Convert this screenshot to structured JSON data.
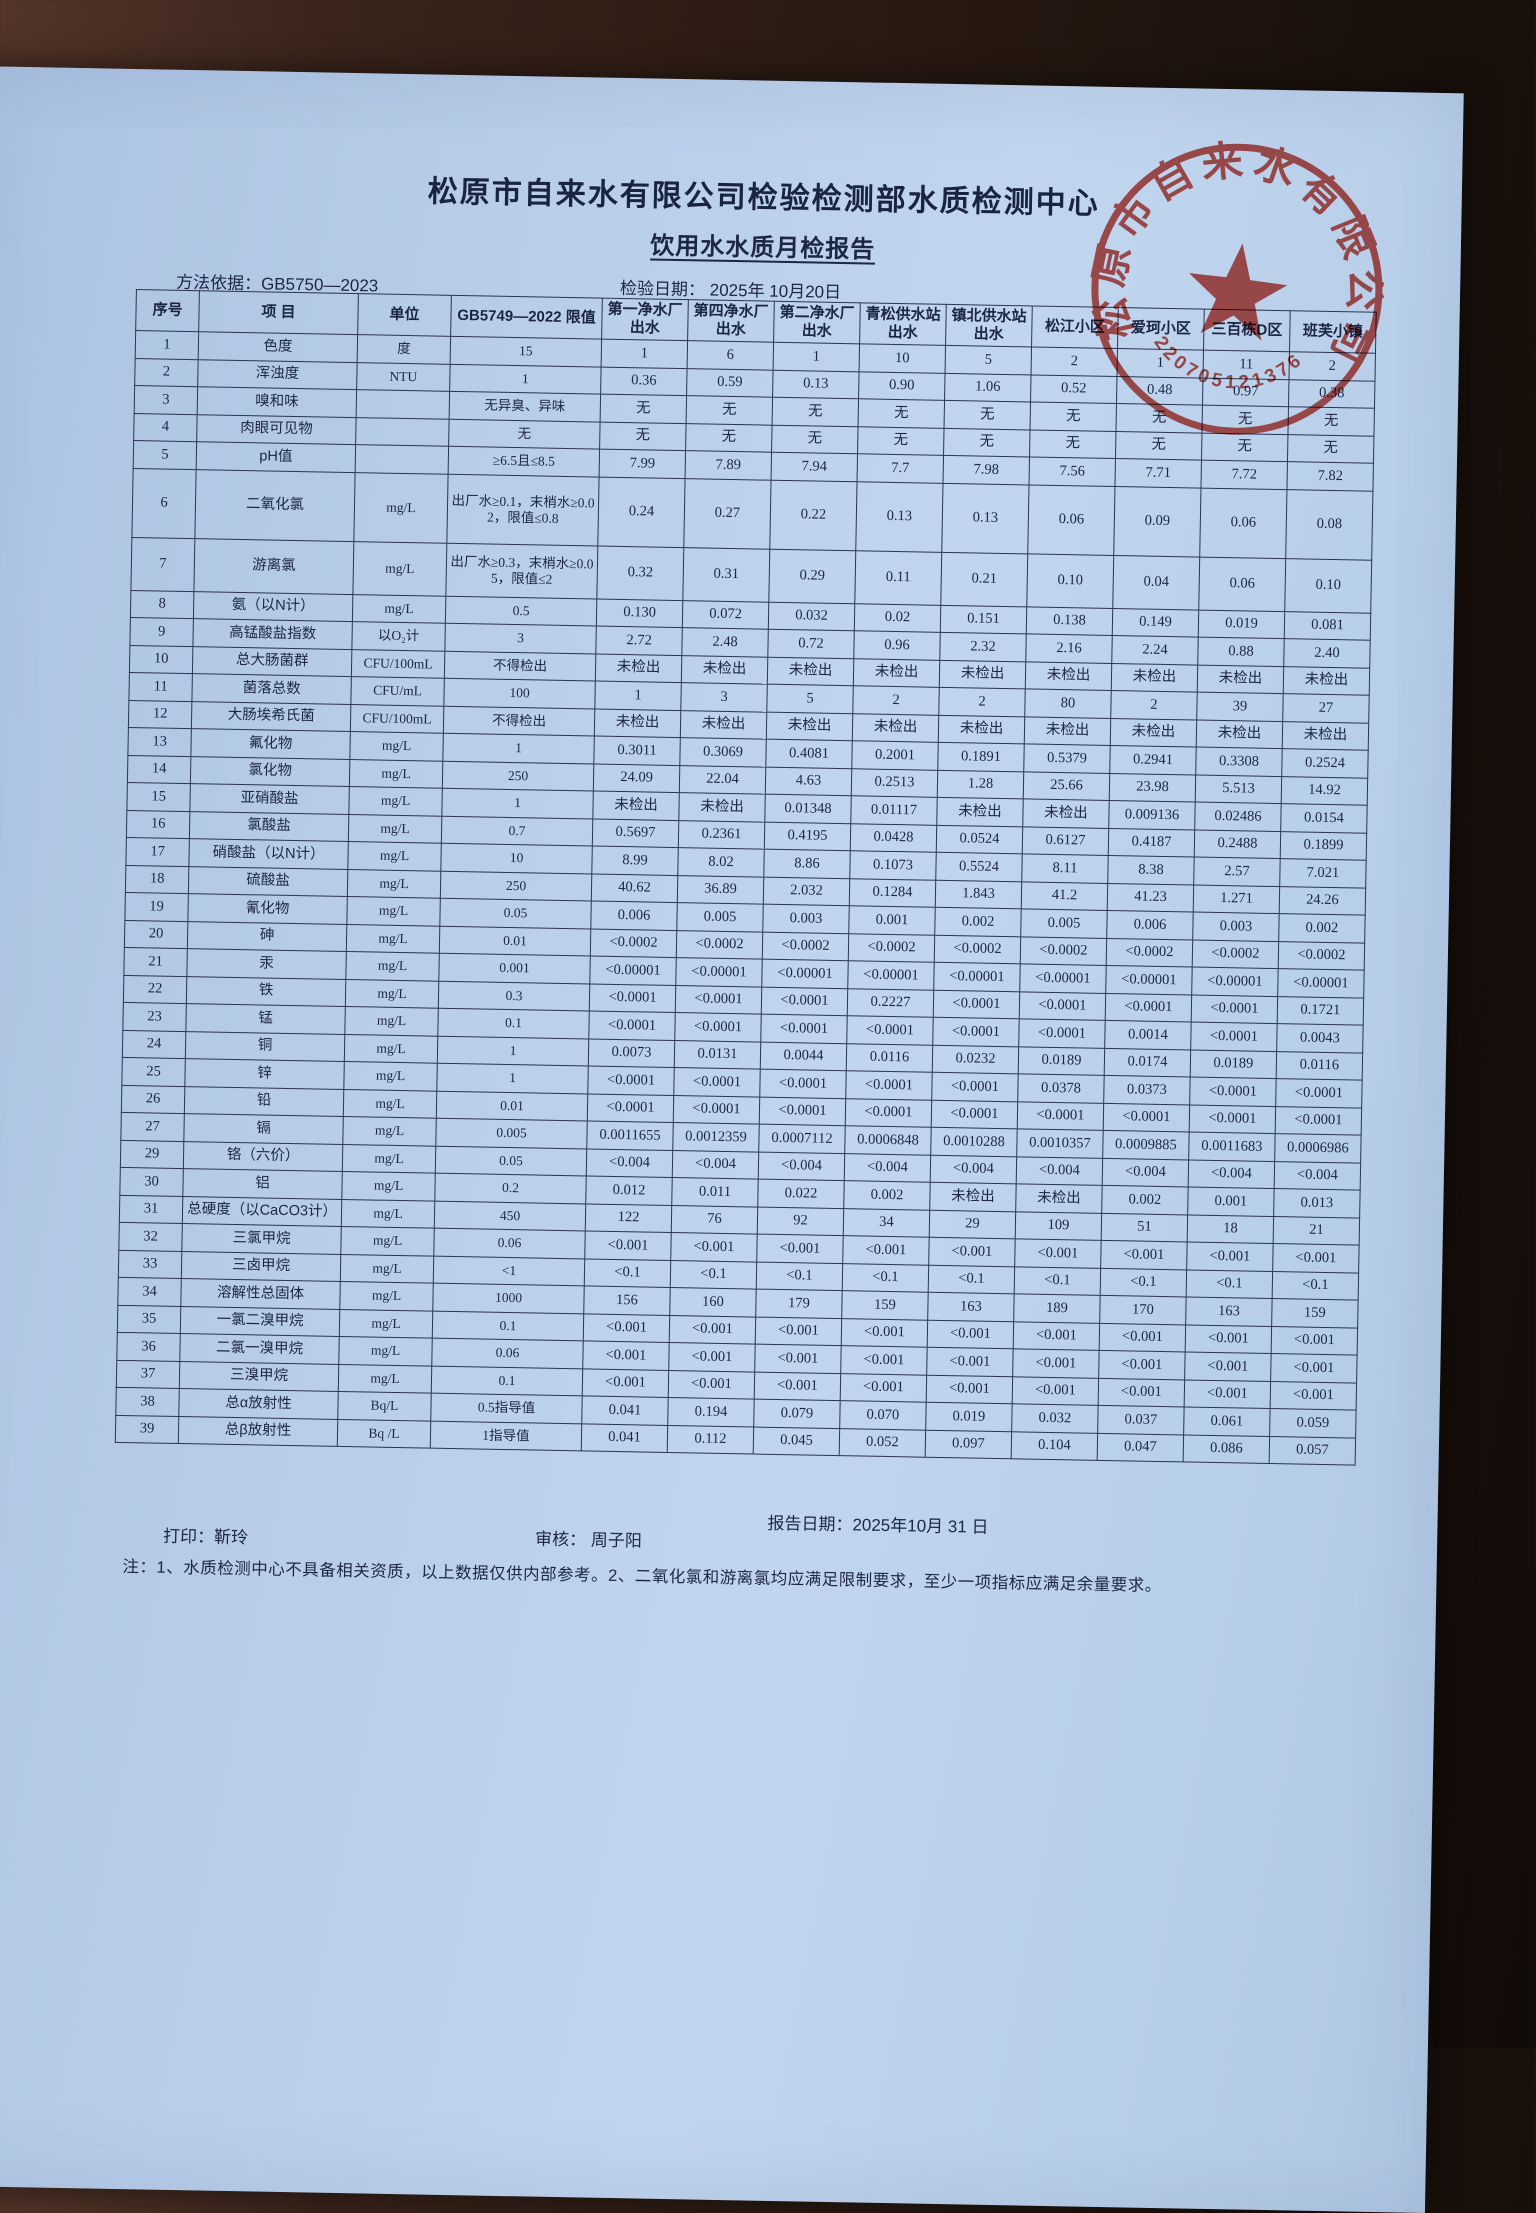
{
  "header": {
    "title": "松原市自来水有限公司检验检测部水质检测中心",
    "subtitle": "饮用水水质月检报告",
    "method": "方法依据：GB5750—2023",
    "test_date": "检验日期：  2025年 10月20日"
  },
  "table": {
    "columns": [
      "序号",
      "项  目",
      "单位",
      "GB5749—2022 限值",
      "第一净水厂出水",
      "第四净水厂出水",
      "第二净水厂出水",
      "青松供水站出水",
      "镇北供水站出水",
      "松江小区",
      "爱珂小区",
      "三百栋D区",
      "班芙小镇"
    ],
    "rows": [
      [
        "1",
        "色度",
        "度",
        "15",
        "1",
        "6",
        "1",
        "10",
        "5",
        "2",
        "1",
        "11",
        "2"
      ],
      [
        "2",
        "浑浊度",
        "NTU",
        "1",
        "0.36",
        "0.59",
        "0.13",
        "0.90",
        "1.06",
        "0.52",
        "0.48",
        "0.97",
        "0.38"
      ],
      [
        "3",
        "嗅和味",
        "",
        "无异臭、异味",
        "无",
        "无",
        "无",
        "无",
        "无",
        "无",
        "无",
        "无",
        "无"
      ],
      [
        "4",
        "肉眼可见物",
        "",
        "无",
        "无",
        "无",
        "无",
        "无",
        "无",
        "无",
        "无",
        "无",
        "无"
      ],
      [
        "5",
        "pH值",
        "",
        "≥6.5且≤8.5",
        "7.99",
        "7.89",
        "7.94",
        "7.7",
        "7.98",
        "7.56",
        "7.71",
        "7.72",
        "7.82"
      ],
      [
        "6",
        "二氧化氯",
        "mg/L",
        "出厂水≥0.1，末梢水≥0.02，限值≤0.8",
        "0.24",
        "0.27",
        "0.22",
        "0.13",
        "0.13",
        "0.06",
        "0.09",
        "0.06",
        "0.08"
      ],
      [
        "7",
        "游离氯",
        "mg/L",
        "出厂水≥0.3，末梢水≥0.05，限值≤2",
        "0.32",
        "0.31",
        "0.29",
        "0.11",
        "0.21",
        "0.10",
        "0.04",
        "0.06",
        "0.10"
      ],
      [
        "8",
        "氨（以N计）",
        "mg/L",
        "0.5",
        "0.130",
        "0.072",
        "0.032",
        "0.02",
        "0.151",
        "0.138",
        "0.149",
        "0.019",
        "0.081"
      ],
      [
        "9",
        "高锰酸盐指数",
        "以O₂计",
        "3",
        "2.72",
        "2.48",
        "0.72",
        "0.96",
        "2.32",
        "2.16",
        "2.24",
        "0.88",
        "2.40"
      ],
      [
        "10",
        "总大肠菌群",
        "CFU/100mL",
        "不得检出",
        "未检出",
        "未检出",
        "未检出",
        "未检出",
        "未检出",
        "未检出",
        "未检出",
        "未检出",
        "未检出"
      ],
      [
        "11",
        "菌落总数",
        "CFU/mL",
        "100",
        "1",
        "3",
        "5",
        "2",
        "2",
        "80",
        "2",
        "39",
        "27"
      ],
      [
        "12",
        "大肠埃希氏菌",
        "CFU/100mL",
        "不得检出",
        "未检出",
        "未检出",
        "未检出",
        "未检出",
        "未检出",
        "未检出",
        "未检出",
        "未检出",
        "未检出"
      ],
      [
        "13",
        "氟化物",
        "mg/L",
        "1",
        "0.3011",
        "0.3069",
        "0.4081",
        "0.2001",
        "0.1891",
        "0.5379",
        "0.2941",
        "0.3308",
        "0.2524"
      ],
      [
        "14",
        "氯化物",
        "mg/L",
        "250",
        "24.09",
        "22.04",
        "4.63",
        "0.2513",
        "1.28",
        "25.66",
        "23.98",
        "5.513",
        "14.92"
      ],
      [
        "15",
        "亚硝酸盐",
        "mg/L",
        "1",
        "未检出",
        "未检出",
        "0.01348",
        "0.01117",
        "未检出",
        "未检出",
        "0.009136",
        "0.02486",
        "0.0154"
      ],
      [
        "16",
        "氯酸盐",
        "mg/L",
        "0.7",
        "0.5697",
        "0.2361",
        "0.4195",
        "0.0428",
        "0.0524",
        "0.6127",
        "0.4187",
        "0.2488",
        "0.1899"
      ],
      [
        "17",
        "硝酸盐（以N计）",
        "mg/L",
        "10",
        "8.99",
        "8.02",
        "8.86",
        "0.1073",
        "0.5524",
        "8.11",
        "8.38",
        "2.57",
        "7.021"
      ],
      [
        "18",
        "硫酸盐",
        "mg/L",
        "250",
        "40.62",
        "36.89",
        "2.032",
        "0.1284",
        "1.843",
        "41.2",
        "41.23",
        "1.271",
        "24.26"
      ],
      [
        "19",
        "氰化物",
        "mg/L",
        "0.05",
        "0.006",
        "0.005",
        "0.003",
        "0.001",
        "0.002",
        "0.005",
        "0.006",
        "0.003",
        "0.002"
      ],
      [
        "20",
        "砷",
        "mg/L",
        "0.01",
        "<0.0002",
        "<0.0002",
        "<0.0002",
        "<0.0002",
        "<0.0002",
        "<0.0002",
        "<0.0002",
        "<0.0002",
        "<0.0002"
      ],
      [
        "21",
        "汞",
        "mg/L",
        "0.001",
        "<0.00001",
        "<0.00001",
        "<0.00001",
        "<0.00001",
        "<0.00001",
        "<0.00001",
        "<0.00001",
        "<0.00001",
        "<0.00001"
      ],
      [
        "22",
        "铁",
        "mg/L",
        "0.3",
        "<0.0001",
        "<0.0001",
        "<0.0001",
        "0.2227",
        "<0.0001",
        "<0.0001",
        "<0.0001",
        "<0.0001",
        "0.1721"
      ],
      [
        "23",
        "锰",
        "mg/L",
        "0.1",
        "<0.0001",
        "<0.0001",
        "<0.0001",
        "<0.0001",
        "<0.0001",
        "<0.0001",
        "0.0014",
        "<0.0001",
        "0.0043"
      ],
      [
        "24",
        "铜",
        "mg/L",
        "1",
        "0.0073",
        "0.0131",
        "0.0044",
        "0.0116",
        "0.0232",
        "0.0189",
        "0.0174",
        "0.0189",
        "0.0116"
      ],
      [
        "25",
        "锌",
        "mg/L",
        "1",
        "<0.0001",
        "<0.0001",
        "<0.0001",
        "<0.0001",
        "<0.0001",
        "0.0378",
        "0.0373",
        "<0.0001",
        "<0.0001"
      ],
      [
        "26",
        "铅",
        "mg/L",
        "0.01",
        "<0.0001",
        "<0.0001",
        "<0.0001",
        "<0.0001",
        "<0.0001",
        "<0.0001",
        "<0.0001",
        "<0.0001",
        "<0.0001"
      ],
      [
        "27",
        "镉",
        "mg/L",
        "0.005",
        "0.0011655",
        "0.0012359",
        "0.0007112",
        "0.0006848",
        "0.0010288",
        "0.0010357",
        "0.0009885",
        "0.0011683",
        "0.0006986"
      ],
      [
        "29",
        "铬（六价）",
        "mg/L",
        "0.05",
        "<0.004",
        "<0.004",
        "<0.004",
        "<0.004",
        "<0.004",
        "<0.004",
        "<0.004",
        "<0.004",
        "<0.004"
      ],
      [
        "30",
        "铝",
        "mg/L",
        "0.2",
        "0.012",
        "0.011",
        "0.022",
        "0.002",
        "未检出",
        "未检出",
        "0.002",
        "0.001",
        "0.013"
      ],
      [
        "31",
        "总硬度（以CaCO3计）",
        "mg/L",
        "450",
        "122",
        "76",
        "92",
        "34",
        "29",
        "109",
        "51",
        "18",
        "21"
      ],
      [
        "32",
        "三氯甲烷",
        "mg/L",
        "0.06",
        "<0.001",
        "<0.001",
        "<0.001",
        "<0.001",
        "<0.001",
        "<0.001",
        "<0.001",
        "<0.001",
        "<0.001"
      ],
      [
        "33",
        "三卤甲烷",
        "mg/L",
        "<1",
        "<0.1",
        "<0.1",
        "<0.1",
        "<0.1",
        "<0.1",
        "<0.1",
        "<0.1",
        "<0.1",
        "<0.1"
      ],
      [
        "34",
        "溶解性总固体",
        "mg/L",
        "1000",
        "156",
        "160",
        "179",
        "159",
        "163",
        "189",
        "170",
        "163",
        "159"
      ],
      [
        "35",
        "一氯二溴甲烷",
        "mg/L",
        "0.1",
        "<0.001",
        "<0.001",
        "<0.001",
        "<0.001",
        "<0.001",
        "<0.001",
        "<0.001",
        "<0.001",
        "<0.001"
      ],
      [
        "36",
        "二氯一溴甲烷",
        "mg/L",
        "0.06",
        "<0.001",
        "<0.001",
        "<0.001",
        "<0.001",
        "<0.001",
        "<0.001",
        "<0.001",
        "<0.001",
        "<0.001"
      ],
      [
        "37",
        "三溴甲烷",
        "mg/L",
        "0.1",
        "<0.001",
        "<0.001",
        "<0.001",
        "<0.001",
        "<0.001",
        "<0.001",
        "<0.001",
        "<0.001",
        "<0.001"
      ],
      [
        "38",
        "总α放射性",
        "Bq/L",
        "0.5指导值",
        "0.041",
        "0.194",
        "0.079",
        "0.070",
        "0.019",
        "0.032",
        "0.037",
        "0.061",
        "0.059"
      ],
      [
        "39",
        "总β放射性",
        "Bq /L",
        "1指导值",
        "0.041",
        "0.112",
        "0.045",
        "0.052",
        "0.097",
        "0.104",
        "0.047",
        "0.086",
        "0.057"
      ]
    ]
  },
  "footer": {
    "print": "打印：靳玲",
    "review": "审核： 周子阳",
    "report_date": "报告日期：2025年10月 31 日",
    "note": "注：1、水质检测中心不具备相关资质，以上数据仅供内部参考。2、二氧化氯和游离氯均应满足限制要求，至少一项指标应满足余量要求。"
  },
  "stamp": {
    "company": "松原市自来水有限公司",
    "serial": "220705121376",
    "color": "#c2352c"
  }
}
